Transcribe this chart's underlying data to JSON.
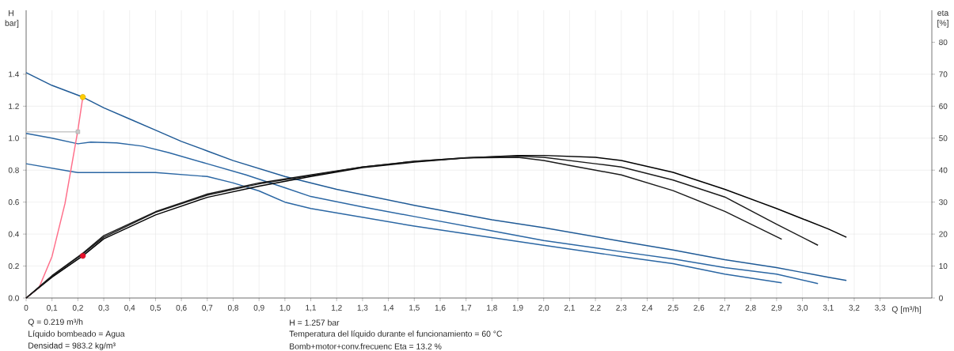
{
  "chart_data": {
    "type": "line",
    "xlabel": "Q [m³/h]",
    "ylabel": "H bar]",
    "y2label": "eta [%]",
    "xlim": [
      0,
      3.5
    ],
    "ylim": [
      0,
      1.8
    ],
    "y2lim": [
      0,
      90
    ],
    "xticks": [
      0,
      {
        "value": 0.1,
        "label": "0,1"
      },
      {
        "value": 0.2,
        "label": "0,2"
      },
      {
        "value": 0.3,
        "label": "0,3"
      },
      {
        "value": 0.4,
        "label": "0,4"
      },
      {
        "value": 0.5,
        "label": "0,5"
      },
      {
        "value": 0.6,
        "label": "0,6"
      },
      {
        "value": 0.7,
        "label": "0,7"
      },
      {
        "value": 0.8,
        "label": "0,8"
      },
      {
        "value": 0.9,
        "label": "0,9"
      },
      {
        "value": 1.0,
        "label": "1,0"
      },
      {
        "value": 1.1,
        "label": "1,1"
      },
      {
        "value": 1.2,
        "label": "1,2"
      },
      {
        "value": 1.3,
        "label": "1,3"
      },
      {
        "value": 1.4,
        "label": "1,4"
      },
      {
        "value": 1.5,
        "label": "1,5"
      },
      {
        "value": 1.6,
        "label": "1,6"
      },
      {
        "value": 1.7,
        "label": "1,7"
      },
      {
        "value": 1.8,
        "label": "1,8"
      },
      {
        "value": 1.9,
        "label": "1,9"
      },
      {
        "value": 2.0,
        "label": "2,0"
      },
      {
        "value": 2.1,
        "label": "2,1"
      },
      {
        "value": 2.2,
        "label": "2,2"
      },
      {
        "value": 2.3,
        "label": "2,3"
      },
      {
        "value": 2.4,
        "label": "2,4"
      },
      {
        "value": 2.5,
        "label": "2,5"
      },
      {
        "value": 2.6,
        "label": "2,6"
      },
      {
        "value": 2.7,
        "label": "2,7"
      },
      {
        "value": 2.8,
        "label": "2,8"
      },
      {
        "value": 2.9,
        "label": "2,9"
      },
      {
        "value": 3.0,
        "label": "3,0"
      },
      {
        "value": 3.1,
        "label": "3,1"
      },
      {
        "value": 3.2,
        "label": "3,2"
      },
      {
        "value": 3.3,
        "label": "3,3"
      }
    ],
    "yticks": [
      {
        "value": 0,
        "label": "0.0"
      },
      0.2,
      0.4,
      0.6,
      0.8,
      {
        "value": 1,
        "label": "1.0"
      },
      1.2,
      1.4
    ],
    "y2ticks": [
      0,
      10,
      20,
      30,
      40,
      50,
      60,
      70,
      80
    ],
    "grid": true,
    "series": [
      {
        "color": "#1f5a96",
        "x": [
          0,
          0.1,
          0.219,
          0.3,
          0.4,
          0.5,
          0.6,
          0.7,
          0.8,
          0.9,
          1.0,
          1.2,
          1.5,
          1.8,
          2.0,
          2.3,
          2.5,
          2.7,
          2.9,
          3.0,
          3.1,
          3.17
        ],
        "values": [
          1.41,
          1.33,
          1.257,
          1.19,
          1.12,
          1.05,
          0.98,
          0.92,
          0.86,
          0.81,
          0.76,
          0.68,
          0.58,
          0.49,
          0.44,
          0.355,
          0.3,
          0.24,
          0.19,
          0.16,
          0.13,
          0.11
        ]
      },
      {
        "color": "#2a66a3",
        "x": [
          0,
          0.1,
          0.2,
          0.25,
          0.35,
          0.45,
          0.55,
          0.7,
          0.85,
          1.0,
          1.1,
          1.3,
          1.5,
          1.8,
          2.0,
          2.3,
          2.5,
          2.7,
          2.9,
          3.06
        ],
        "values": [
          1.03,
          1.0,
          0.965,
          0.975,
          0.97,
          0.95,
          0.91,
          0.84,
          0.77,
          0.69,
          0.635,
          0.57,
          0.51,
          0.42,
          0.36,
          0.29,
          0.245,
          0.19,
          0.15,
          0.09
        ]
      },
      {
        "color": "#2a66a3",
        "x": [
          0,
          0.18,
          0.2,
          0.5,
          0.7,
          0.8,
          0.9,
          1.0,
          1.1,
          1.5,
          2.0,
          2.3,
          2.5,
          2.7,
          2.92
        ],
        "values": [
          0.84,
          0.79,
          0.785,
          0.785,
          0.76,
          0.72,
          0.67,
          0.6,
          0.56,
          0.45,
          0.33,
          0.26,
          0.215,
          0.15,
          0.095
        ]
      },
      {
        "color": "#ff6f8a",
        "x": [
          0,
          0.05,
          0.1,
          0.15,
          0.2,
          0.219
        ],
        "values": [
          0,
          0.066,
          0.26,
          0.59,
          1.05,
          1.257
        ]
      },
      {
        "color": "#c8c8c8",
        "x": [
          0,
          0.2
        ],
        "values": [
          1.04,
          1.04
        ]
      },
      {
        "type": "scatter",
        "color": "#c8c8c8",
        "marker": "square",
        "x": [
          0.2
        ],
        "values": [
          1.04
        ]
      },
      {
        "color": "#000000",
        "axis": "y2",
        "x": [
          0,
          0.1,
          0.219,
          0.3,
          0.5,
          0.7,
          0.9,
          1.1,
          1.3,
          1.5,
          1.7,
          1.9,
          2.0,
          2.2,
          2.3,
          2.5,
          2.7,
          2.9,
          3.0,
          3.1,
          3.17
        ],
        "values": [
          0,
          6.5,
          13.2,
          18.5,
          26,
          31.5,
          35,
          38,
          40.8,
          42.5,
          43.8,
          44.6,
          44.6,
          44,
          43,
          39.3,
          34,
          28,
          24.8,
          21.6,
          19
        ]
      },
      {
        "color": "#1a1a1a",
        "axis": "y2",
        "x": [
          0,
          0.1,
          0.219,
          0.3,
          0.5,
          0.7,
          0.9,
          1.1,
          1.3,
          1.5,
          1.7,
          1.9,
          2.0,
          2.2,
          2.3,
          2.5,
          2.7,
          2.9,
          3.06
        ],
        "values": [
          0,
          6.8,
          13.8,
          19,
          26.8,
          32.2,
          35.7,
          38.3,
          41,
          42.7,
          43.9,
          44.4,
          44,
          42,
          41,
          36.9,
          31.6,
          23.1,
          16.5
        ]
      },
      {
        "color": "#1a1a1a",
        "axis": "y2",
        "x": [
          0,
          0.1,
          0.219,
          0.3,
          0.5,
          0.7,
          0.9,
          1.1,
          1.3,
          1.5,
          1.7,
          1.9,
          2.0,
          2.1,
          2.2,
          2.3,
          2.5,
          2.7,
          2.92
        ],
        "values": [
          0,
          7,
          14,
          19.5,
          27,
          32.5,
          36,
          38.5,
          41,
          42.8,
          43.8,
          44,
          43,
          41.5,
          40,
          38.5,
          33.6,
          27.1,
          18.4
        ]
      },
      {
        "type": "scatter",
        "color": "#ffcc00",
        "marker": "circle",
        "x": [
          0.219
        ],
        "values": [
          1.257
        ]
      },
      {
        "type": "scatter",
        "color": "#e8102a",
        "marker": "circle",
        "axis": "y2",
        "x": [
          0.219
        ],
        "values": [
          13.2
        ]
      }
    ],
    "annotations": [
      "Q = 0.219 m³/h",
      "Líquido bombeado = Agua",
      "Densidad = 983.2 kg/m³",
      "H = 1.257 bar",
      "Temperatura del líquido durante el funcionamiento = 60 °C",
      "Bomb+motor+conv.frecuenc Eta = 13.2 %"
    ]
  }
}
